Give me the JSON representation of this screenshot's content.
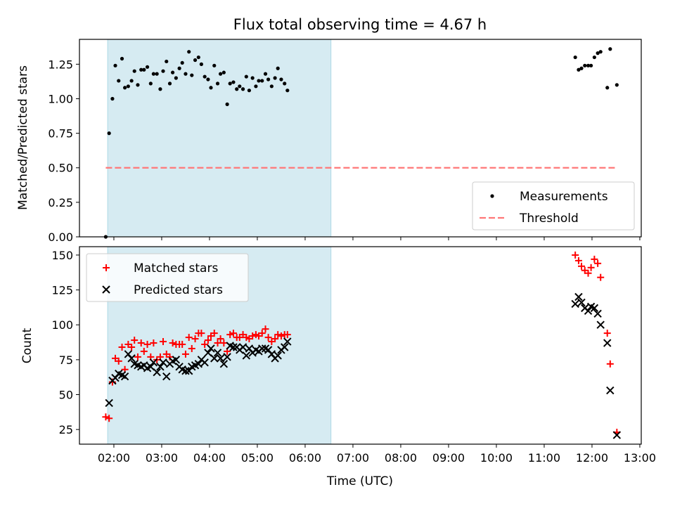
{
  "chart_data": [
    {
      "type": "scatter",
      "title": "Flux total observing time = 4.67 h",
      "xlabel": "",
      "ylabel": "Matched/Predicted stars",
      "xlim": [
        1.28,
        13.03
      ],
      "ylim": [
        0,
        1.43
      ],
      "yticks": [
        0,
        0.25,
        0.5,
        0.75,
        1.0,
        1.25
      ],
      "ytick_labels": [
        "0.00",
        "0.25",
        "0.50",
        "0.75",
        "1.00",
        "1.25"
      ],
      "shaded_span": [
        1.87,
        6.54
      ],
      "legend_location": "lower right",
      "series": [
        {
          "name": "Measurements",
          "marker": "dot",
          "color": "#000000",
          "points": [
            [
              1.83,
              0.0
            ],
            [
              1.9,
              0.75
            ],
            [
              1.97,
              1.0
            ],
            [
              2.03,
              1.24
            ],
            [
              2.1,
              1.13
            ],
            [
              2.17,
              1.29
            ],
            [
              2.23,
              1.08
            ],
            [
              2.3,
              1.09
            ],
            [
              2.37,
              1.13
            ],
            [
              2.43,
              1.2
            ],
            [
              2.5,
              1.1
            ],
            [
              2.57,
              1.21
            ],
            [
              2.63,
              1.21
            ],
            [
              2.7,
              1.23
            ],
            [
              2.77,
              1.11
            ],
            [
              2.83,
              1.18
            ],
            [
              2.9,
              1.18
            ],
            [
              2.97,
              1.07
            ],
            [
              3.03,
              1.2
            ],
            [
              3.1,
              1.27
            ],
            [
              3.17,
              1.11
            ],
            [
              3.23,
              1.19
            ],
            [
              3.3,
              1.15
            ],
            [
              3.37,
              1.22
            ],
            [
              3.43,
              1.26
            ],
            [
              3.5,
              1.18
            ],
            [
              3.57,
              1.34
            ],
            [
              3.63,
              1.17
            ],
            [
              3.7,
              1.28
            ],
            [
              3.77,
              1.3
            ],
            [
              3.83,
              1.25
            ],
            [
              3.9,
              1.16
            ],
            [
              3.97,
              1.14
            ],
            [
              4.03,
              1.08
            ],
            [
              4.1,
              1.24
            ],
            [
              4.17,
              1.11
            ],
            [
              4.23,
              1.18
            ],
            [
              4.3,
              1.19
            ],
            [
              4.37,
              0.96
            ],
            [
              4.43,
              1.11
            ],
            [
              4.5,
              1.12
            ],
            [
              4.57,
              1.07
            ],
            [
              4.63,
              1.09
            ],
            [
              4.7,
              1.07
            ],
            [
              4.77,
              1.16
            ],
            [
              4.83,
              1.06
            ],
            [
              4.9,
              1.15
            ],
            [
              4.97,
              1.09
            ],
            [
              5.03,
              1.13
            ],
            [
              5.1,
              1.13
            ],
            [
              5.17,
              1.18
            ],
            [
              5.23,
              1.14
            ],
            [
              5.3,
              1.09
            ],
            [
              5.37,
              1.15
            ],
            [
              5.43,
              1.22
            ],
            [
              5.5,
              1.14
            ],
            [
              5.57,
              1.11
            ],
            [
              5.63,
              1.06
            ],
            [
              11.65,
              1.3
            ],
            [
              11.72,
              1.21
            ],
            [
              11.78,
              1.22
            ],
            [
              11.85,
              1.24
            ],
            [
              11.92,
              1.24
            ],
            [
              11.98,
              1.24
            ],
            [
              12.05,
              1.3
            ],
            [
              12.12,
              1.33
            ],
            [
              12.18,
              1.34
            ],
            [
              12.32,
              1.08
            ],
            [
              12.38,
              1.36
            ],
            [
              12.52,
              1.1
            ]
          ]
        },
        {
          "name": "Threshold",
          "marker": "dashed-line",
          "color": "#ff7777",
          "points": [
            [
              1.83,
              0.5
            ],
            [
              12.52,
              0.5
            ]
          ]
        }
      ]
    },
    {
      "type": "scatter",
      "title": "",
      "xlabel": "Time (UTC)",
      "ylabel": "Count",
      "xlim": [
        1.28,
        13.03
      ],
      "ylim": [
        14.5,
        156
      ],
      "yticks": [
        25,
        50,
        75,
        100,
        125,
        150
      ],
      "ytick_labels": [
        "25",
        "50",
        "75",
        "100",
        "125",
        "150"
      ],
      "xticks": [
        2,
        3,
        4,
        5,
        6,
        7,
        8,
        9,
        10,
        11,
        12,
        13
      ],
      "xtick_labels": [
        "02:00",
        "03:00",
        "04:00",
        "05:00",
        "06:00",
        "07:00",
        "08:00",
        "09:00",
        "10:00",
        "11:00",
        "12:00",
        "13:00"
      ],
      "shaded_span": [
        1.87,
        6.54
      ],
      "legend_location": "upper left",
      "series": [
        {
          "name": "Matched stars",
          "marker": "plus",
          "color": "#ff0000",
          "points": [
            [
              1.83,
              34
            ],
            [
              1.9,
              33
            ],
            [
              1.97,
              59
            ],
            [
              2.03,
              76
            ],
            [
              2.1,
              74
            ],
            [
              2.17,
              84
            ],
            [
              2.23,
              68
            ],
            [
              2.3,
              86
            ],
            [
              2.37,
              84
            ],
            [
              2.43,
              89
            ],
            [
              2.5,
              77
            ],
            [
              2.57,
              87
            ],
            [
              2.63,
              81
            ],
            [
              2.7,
              86
            ],
            [
              2.77,
              77
            ],
            [
              2.83,
              87
            ],
            [
              2.9,
              75
            ],
            [
              2.97,
              77
            ],
            [
              3.03,
              88
            ],
            [
              3.1,
              79
            ],
            [
              3.17,
              77
            ],
            [
              3.23,
              87
            ],
            [
              3.3,
              86
            ],
            [
              3.37,
              86
            ],
            [
              3.43,
              86
            ],
            [
              3.5,
              79
            ],
            [
              3.57,
              91
            ],
            [
              3.63,
              83
            ],
            [
              3.7,
              90
            ],
            [
              3.77,
              94
            ],
            [
              3.83,
              94
            ],
            [
              3.9,
              86
            ],
            [
              3.97,
              89
            ],
            [
              4.03,
              92
            ],
            [
              4.1,
              94
            ],
            [
              4.17,
              87
            ],
            [
              4.23,
              90
            ],
            [
              4.3,
              87
            ],
            [
              4.37,
              81
            ],
            [
              4.43,
              93
            ],
            [
              4.5,
              94
            ],
            [
              4.57,
              91
            ],
            [
              4.63,
              91
            ],
            [
              4.7,
              93
            ],
            [
              4.77,
              91
            ],
            [
              4.83,
              90
            ],
            [
              4.9,
              92
            ],
            [
              4.97,
              93
            ],
            [
              5.03,
              92
            ],
            [
              5.1,
              94
            ],
            [
              5.17,
              97
            ],
            [
              5.23,
              91
            ],
            [
              5.3,
              88
            ],
            [
              5.37,
              90
            ],
            [
              5.43,
              93
            ],
            [
              5.5,
              92
            ],
            [
              5.57,
              93
            ],
            [
              5.63,
              93
            ],
            [
              11.65,
              150
            ],
            [
              11.72,
              146
            ],
            [
              11.78,
              142
            ],
            [
              11.85,
              139
            ],
            [
              11.92,
              137
            ],
            [
              11.98,
              141
            ],
            [
              12.05,
              147
            ],
            [
              12.12,
              144
            ],
            [
              12.18,
              134
            ],
            [
              12.32,
              94
            ],
            [
              12.38,
              72
            ],
            [
              12.52,
              23
            ]
          ]
        },
        {
          "name": "Predicted stars",
          "marker": "x",
          "color": "#000000",
          "points": [
            [
              1.9,
              44
            ],
            [
              1.97,
              60
            ],
            [
              2.03,
              62
            ],
            [
              2.1,
              65
            ],
            [
              2.17,
              64
            ],
            [
              2.23,
              63
            ],
            [
              2.3,
              79
            ],
            [
              2.37,
              76
            ],
            [
              2.43,
              72
            ],
            [
              2.5,
              71
            ],
            [
              2.57,
              70
            ],
            [
              2.63,
              71
            ],
            [
              2.7,
              69
            ],
            [
              2.77,
              70
            ],
            [
              2.83,
              73
            ],
            [
              2.9,
              66
            ],
            [
              2.97,
              70
            ],
            [
              3.03,
              73
            ],
            [
              3.1,
              63
            ],
            [
              3.17,
              72
            ],
            [
              3.23,
              74
            ],
            [
              3.3,
              75
            ],
            [
              3.37,
              70
            ],
            [
              3.43,
              68
            ],
            [
              3.5,
              67
            ],
            [
              3.57,
              67
            ],
            [
              3.63,
              70
            ],
            [
              3.7,
              71
            ],
            [
              3.77,
              72
            ],
            [
              3.83,
              75
            ],
            [
              3.9,
              73
            ],
            [
              3.97,
              80
            ],
            [
              4.03,
              83
            ],
            [
              4.1,
              76
            ],
            [
              4.17,
              80
            ],
            [
              4.23,
              76
            ],
            [
              4.3,
              72
            ],
            [
              4.37,
              77
            ],
            [
              4.43,
              85
            ],
            [
              4.5,
              84
            ],
            [
              4.57,
              84
            ],
            [
              4.63,
              82
            ],
            [
              4.7,
              84
            ],
            [
              4.77,
              78
            ],
            [
              4.83,
              83
            ],
            [
              4.9,
              80
            ],
            [
              4.97,
              82
            ],
            [
              5.03,
              81
            ],
            [
              5.1,
              83
            ],
            [
              5.17,
              83
            ],
            [
              5.23,
              82
            ],
            [
              5.3,
              79
            ],
            [
              5.37,
              76
            ],
            [
              5.43,
              78
            ],
            [
              5.5,
              82
            ],
            [
              5.57,
              84
            ],
            [
              5.63,
              88
            ],
            [
              11.65,
              115
            ],
            [
              11.72,
              120
            ],
            [
              11.78,
              116
            ],
            [
              11.85,
              112
            ],
            [
              11.92,
              110
            ],
            [
              11.98,
              113
            ],
            [
              12.05,
              112
            ],
            [
              12.12,
              108
            ],
            [
              12.18,
              100
            ],
            [
              12.32,
              87
            ],
            [
              12.38,
              53
            ],
            [
              12.52,
              21
            ]
          ]
        }
      ]
    }
  ]
}
